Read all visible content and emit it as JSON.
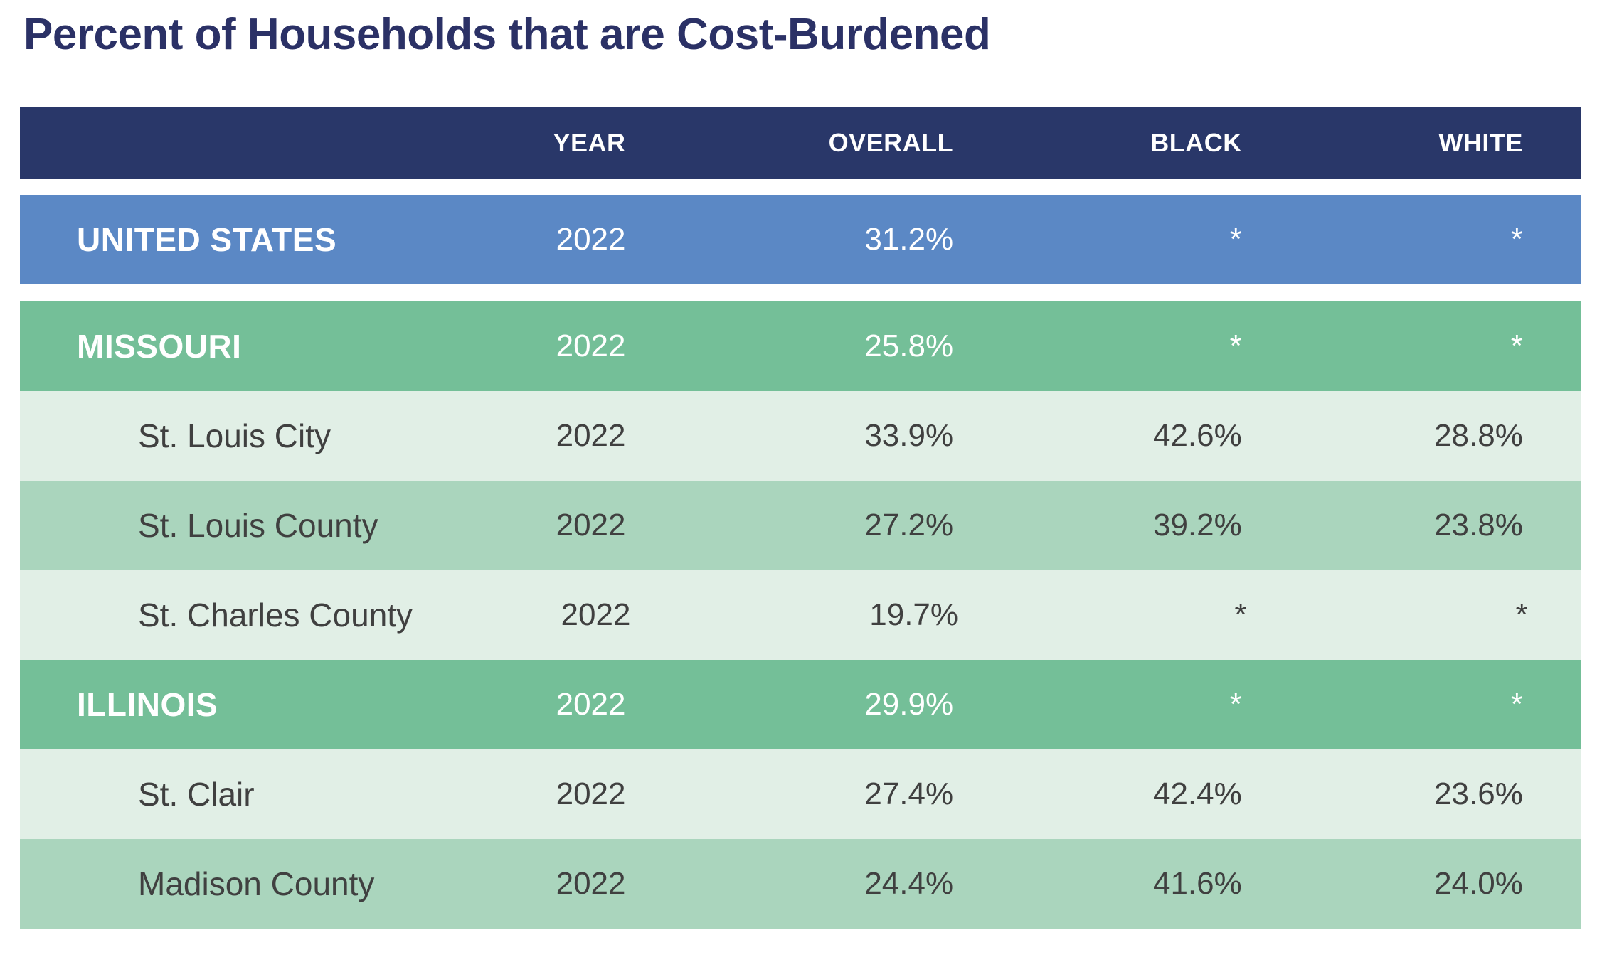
{
  "title": "Percent of Households that are Cost-Burdened",
  "table": {
    "headers": {
      "year": "YEAR",
      "overall": "OVERALL",
      "black": "BLACK",
      "white": "WHITE"
    },
    "rows": [
      {
        "name": "UNITED STATES",
        "level": "country",
        "year": "2022",
        "overall": "31.2%",
        "black": "*",
        "white": "*"
      },
      {
        "name": "MISSOURI",
        "level": "state",
        "year": "2022",
        "overall": "25.8%",
        "black": "*",
        "white": "*"
      },
      {
        "name": "St. Louis City",
        "level": "county",
        "year": "2022",
        "overall": "33.9%",
        "black": "42.6%",
        "white": "28.8%"
      },
      {
        "name": "St. Louis County",
        "level": "county",
        "year": "2022",
        "overall": "27.2%",
        "black": "39.2%",
        "white": "23.8%"
      },
      {
        "name": "St. Charles County",
        "level": "county",
        "year": "2022",
        "overall": "19.7%",
        "black": "*",
        "white": "*"
      },
      {
        "name": "ILLINOIS",
        "level": "state",
        "year": "2022",
        "overall": "29.9%",
        "black": "*",
        "white": "*"
      },
      {
        "name": "St. Clair",
        "level": "county",
        "year": "2022",
        "overall": "27.4%",
        "black": "42.4%",
        "white": "23.6%"
      },
      {
        "name": "Madison County",
        "level": "county",
        "year": "2022",
        "overall": "24.4%",
        "black": "41.6%",
        "white": "24.0%"
      }
    ]
  },
  "colors": {
    "header_bg": "#293769",
    "country_row_bg": "#5b88c5",
    "state_row_bg": "#74bf98",
    "county_row_light_bg": "#e1efe6",
    "county_row_medium_bg": "#aad5bd",
    "title_text": "#2b3166",
    "body_text": "#404040",
    "inverse_text": "#ffffff"
  },
  "chart_data": {
    "type": "table",
    "title": "Percent of Households that are Cost-Burdened",
    "columns": [
      "",
      "YEAR",
      "OVERALL",
      "BLACK",
      "WHITE"
    ],
    "rows": [
      [
        "UNITED STATES",
        "2022",
        "31.2%",
        "*",
        "*"
      ],
      [
        "MISSOURI",
        "2022",
        "25.8%",
        "*",
        "*"
      ],
      [
        "St. Louis City",
        "2022",
        "33.9%",
        "42.6%",
        "28.8%"
      ],
      [
        "St. Louis County",
        "2022",
        "27.2%",
        "39.2%",
        "23.8%"
      ],
      [
        "St. Charles County",
        "2022",
        "19.7%",
        "*",
        "*"
      ],
      [
        "ILLINOIS",
        "2022",
        "29.9%",
        "*",
        "*"
      ],
      [
        "St. Clair",
        "2022",
        "27.4%",
        "42.4%",
        "23.6%"
      ],
      [
        "Madison County",
        "2022",
        "24.4%",
        "41.6%",
        "24.0%"
      ]
    ],
    "notes": "Asterisk (*) cells indicate value not shown; rows grouped by geography: US (blue), states (green), counties (alternating light green shades); numeric columns right-aligned"
  }
}
